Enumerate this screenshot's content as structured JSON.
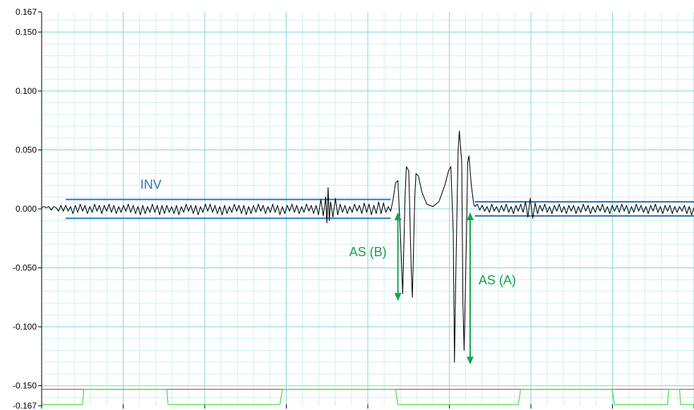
{
  "chart_data": {
    "type": "line",
    "y_ticks": [
      {
        "value": 0.167,
        "label": "0.167"
      },
      {
        "value": 0.15,
        "label": "0.150"
      },
      {
        "value": 0.1,
        "label": "0.100"
      },
      {
        "value": 0.05,
        "label": "0.050"
      },
      {
        "value": 0.0,
        "label": "0.000"
      },
      {
        "value": -0.05,
        "label": "-0.050"
      },
      {
        "value": -0.1,
        "label": "-0.100"
      },
      {
        "value": -0.15,
        "label": "-0.150"
      },
      {
        "value": -0.167,
        "label": "-0.167"
      }
    ],
    "ylim": [
      -0.167,
      0.167
    ],
    "grid": true,
    "signal": {
      "color": "#000000",
      "points": [
        [
          0.0,
          0.001
        ],
        [
          0.02,
          0.002
        ],
        [
          0.04,
          0.001
        ],
        [
          0.06,
          0.002
        ],
        [
          0.08,
          -0.001
        ],
        [
          0.1,
          0.002
        ],
        [
          0.12,
          0.001
        ],
        [
          0.14,
          -0.002
        ],
        [
          0.16,
          0.003
        ],
        [
          0.18,
          -0.002
        ],
        [
          0.2,
          0.003
        ],
        [
          0.22,
          -0.002
        ],
        [
          0.24,
          0.002
        ],
        [
          0.26,
          -0.004
        ],
        [
          0.28,
          0.003
        ],
        [
          0.3,
          -0.003
        ],
        [
          0.32,
          0.004
        ],
        [
          0.34,
          -0.002
        ],
        [
          0.36,
          0.003
        ],
        [
          0.38,
          -0.004
        ],
        [
          0.4,
          0.002
        ],
        [
          0.42,
          -0.003
        ],
        [
          0.44,
          0.004
        ],
        [
          0.46,
          -0.002
        ],
        [
          0.48,
          0.003
        ],
        [
          0.5,
          -0.004
        ],
        [
          0.52,
          0.003
        ],
        [
          0.54,
          -0.002
        ],
        [
          0.56,
          0.004
        ],
        [
          0.58,
          -0.003
        ],
        [
          0.6,
          0.003
        ],
        [
          0.62,
          -0.004
        ],
        [
          0.64,
          0.002
        ],
        [
          0.66,
          -0.003
        ],
        [
          0.68,
          0.003
        ],
        [
          0.7,
          -0.002
        ],
        [
          0.72,
          0.004
        ],
        [
          0.74,
          -0.003
        ],
        [
          0.76,
          0.003
        ],
        [
          0.78,
          -0.004
        ],
        [
          0.8,
          0.002
        ],
        [
          0.82,
          -0.005
        ],
        [
          0.84,
          0.003
        ],
        [
          0.86,
          -0.004
        ],
        [
          0.88,
          0.002
        ],
        [
          0.9,
          -0.003
        ],
        [
          0.92,
          0.004
        ],
        [
          0.94,
          -0.003
        ],
        [
          0.96,
          0.003
        ],
        [
          0.98,
          -0.005
        ],
        [
          1.0,
          0.003
        ],
        [
          1.02,
          -0.004
        ],
        [
          1.04,
          0.003
        ],
        [
          1.06,
          -0.003
        ],
        [
          1.08,
          0.002
        ],
        [
          1.1,
          -0.004
        ],
        [
          1.12,
          0.003
        ],
        [
          1.14,
          -0.005
        ],
        [
          1.16,
          0.002
        ],
        [
          1.18,
          -0.003
        ],
        [
          1.2,
          0.004
        ],
        [
          1.22,
          -0.002
        ],
        [
          1.24,
          0.003
        ],
        [
          1.26,
          -0.004
        ],
        [
          1.28,
          0.003
        ],
        [
          1.3,
          -0.005
        ],
        [
          1.32,
          0.002
        ],
        [
          1.34,
          -0.003
        ],
        [
          1.36,
          0.004
        ],
        [
          1.38,
          -0.002
        ],
        [
          1.4,
          0.004
        ],
        [
          1.42,
          -0.003
        ],
        [
          1.44,
          0.003
        ],
        [
          1.46,
          -0.004
        ],
        [
          1.48,
          0.002
        ],
        [
          1.5,
          -0.005
        ],
        [
          1.52,
          0.003
        ],
        [
          1.54,
          -0.004
        ],
        [
          1.56,
          0.002
        ],
        [
          1.58,
          -0.003
        ],
        [
          1.6,
          0.004
        ],
        [
          1.62,
          -0.002
        ],
        [
          1.64,
          0.003
        ],
        [
          1.66,
          -0.004
        ],
        [
          1.68,
          0.003
        ],
        [
          1.7,
          -0.005
        ],
        [
          1.72,
          0.002
        ],
        [
          1.74,
          -0.004
        ],
        [
          1.76,
          0.003
        ],
        [
          1.78,
          -0.003
        ],
        [
          1.8,
          0.004
        ],
        [
          1.82,
          -0.002
        ],
        [
          1.84,
          0.003
        ],
        [
          1.86,
          -0.004
        ],
        [
          1.88,
          0.002
        ],
        [
          1.9,
          -0.003
        ],
        [
          1.92,
          0.004
        ],
        [
          1.94,
          -0.003
        ],
        [
          1.96,
          0.003
        ],
        [
          1.98,
          -0.005
        ],
        [
          2.0,
          0.002
        ],
        [
          2.02,
          -0.004
        ],
        [
          2.04,
          0.003
        ],
        [
          2.06,
          -0.002
        ],
        [
          2.08,
          0.004
        ],
        [
          2.1,
          -0.003
        ],
        [
          2.12,
          0.003
        ],
        [
          2.14,
          -0.004
        ],
        [
          2.16,
          0.002
        ],
        [
          2.18,
          -0.003
        ],
        [
          2.2,
          0.004
        ],
        [
          2.22,
          -0.002
        ],
        [
          2.24,
          0.003
        ],
        [
          2.26,
          -0.004
        ],
        [
          2.28,
          0.003
        ],
        [
          2.3,
          -0.005
        ],
        [
          2.32,
          0.008
        ],
        [
          2.34,
          -0.006
        ],
        [
          2.36,
          0.01
        ],
        [
          2.37,
          -0.012
        ],
        [
          2.38,
          0.018
        ],
        [
          2.39,
          -0.01
        ],
        [
          2.4,
          0.006
        ],
        [
          2.42,
          -0.007
        ],
        [
          2.44,
          0.009
        ],
        [
          2.46,
          -0.005
        ],
        [
          2.48,
          0.004
        ],
        [
          2.5,
          -0.003
        ],
        [
          2.52,
          0.003
        ],
        [
          2.54,
          -0.004
        ],
        [
          2.56,
          0.002
        ],
        [
          2.58,
          -0.003
        ],
        [
          2.6,
          0.004
        ],
        [
          2.62,
          -0.002
        ],
        [
          2.64,
          0.003
        ],
        [
          2.66,
          -0.004
        ],
        [
          2.68,
          0.005
        ],
        [
          2.7,
          -0.003
        ],
        [
          2.72,
          0.004
        ],
        [
          2.74,
          -0.005
        ],
        [
          2.76,
          0.003
        ],
        [
          2.78,
          -0.004
        ],
        [
          2.8,
          0.006
        ],
        [
          2.82,
          -0.004
        ],
        [
          2.84,
          0.005
        ],
        [
          2.86,
          -0.003
        ],
        [
          2.88,
          0.002
        ],
        [
          2.9,
          -0.002
        ],
        [
          2.92,
          0.008
        ],
        [
          2.94,
          0.022
        ],
        [
          2.96,
          0.024
        ],
        [
          2.98,
          -0.02
        ],
        [
          3.0,
          -0.072
        ],
        [
          3.02,
          0.012
        ],
        [
          3.03,
          0.036
        ],
        [
          3.05,
          0.032
        ],
        [
          3.07,
          -0.05
        ],
        [
          3.08,
          -0.075
        ],
        [
          3.1,
          0.01
        ],
        [
          3.11,
          0.03
        ],
        [
          3.13,
          0.028
        ],
        [
          3.16,
          0.014
        ],
        [
          3.2,
          0.004
        ],
        [
          3.25,
          0.002
        ],
        [
          3.3,
          0.006
        ],
        [
          3.35,
          0.02
        ],
        [
          3.38,
          0.032
        ],
        [
          3.4,
          0.036
        ],
        [
          3.42,
          -0.02
        ],
        [
          3.43,
          -0.13
        ],
        [
          3.44,
          -0.06
        ],
        [
          3.46,
          0.05
        ],
        [
          3.47,
          0.066
        ],
        [
          3.49,
          0.04
        ],
        [
          3.5,
          -0.08
        ],
        [
          3.51,
          -0.12
        ],
        [
          3.53,
          -0.02
        ],
        [
          3.54,
          0.04
        ],
        [
          3.55,
          0.045
        ],
        [
          3.57,
          0.02
        ],
        [
          3.59,
          0.004
        ],
        [
          3.6,
          0.002
        ],
        [
          3.62,
          0.004
        ],
        [
          3.64,
          -0.001
        ],
        [
          3.66,
          0.003
        ],
        [
          3.68,
          -0.002
        ],
        [
          3.7,
          0.002
        ],
        [
          3.72,
          -0.003
        ],
        [
          3.74,
          0.004
        ],
        [
          3.76,
          -0.002
        ],
        [
          3.78,
          0.002
        ],
        [
          3.8,
          -0.003
        ],
        [
          3.82,
          0.003
        ],
        [
          3.84,
          -0.002
        ],
        [
          3.86,
          0.004
        ],
        [
          3.88,
          -0.003
        ],
        [
          3.9,
          0.002
        ],
        [
          3.92,
          -0.004
        ],
        [
          3.94,
          0.003
        ],
        [
          3.96,
          -0.002
        ],
        [
          3.98,
          0.004
        ],
        [
          4.0,
          -0.003
        ],
        [
          4.02,
          0.006
        ],
        [
          4.04,
          -0.007
        ],
        [
          4.06,
          0.009
        ],
        [
          4.08,
          -0.008
        ],
        [
          4.1,
          0.005
        ],
        [
          4.12,
          -0.004
        ],
        [
          4.14,
          0.003
        ],
        [
          4.16,
          -0.002
        ],
        [
          4.18,
          0.004
        ],
        [
          4.2,
          -0.003
        ],
        [
          4.22,
          0.002
        ],
        [
          4.24,
          -0.004
        ],
        [
          4.26,
          0.003
        ],
        [
          4.28,
          -0.002
        ],
        [
          4.3,
          0.004
        ],
        [
          4.32,
          -0.003
        ],
        [
          4.34,
          0.002
        ],
        [
          4.36,
          -0.004
        ],
        [
          4.38,
          0.003
        ],
        [
          4.4,
          -0.002
        ],
        [
          4.42,
          0.003
        ],
        [
          4.44,
          -0.004
        ],
        [
          4.46,
          0.002
        ],
        [
          4.48,
          -0.003
        ],
        [
          4.5,
          0.004
        ],
        [
          4.52,
          -0.002
        ],
        [
          4.54,
          0.003
        ],
        [
          4.56,
          -0.004
        ],
        [
          4.58,
          0.002
        ],
        [
          4.6,
          -0.003
        ],
        [
          4.62,
          0.003
        ],
        [
          4.64,
          -0.002
        ],
        [
          4.66,
          0.004
        ],
        [
          4.68,
          -0.003
        ],
        [
          4.7,
          0.002
        ],
        [
          4.72,
          -0.004
        ],
        [
          4.74,
          0.003
        ],
        [
          4.76,
          -0.002
        ],
        [
          4.78,
          0.003
        ],
        [
          4.8,
          -0.003
        ],
        [
          4.82,
          0.004
        ],
        [
          4.84,
          -0.002
        ],
        [
          4.86,
          0.003
        ],
        [
          4.88,
          -0.004
        ],
        [
          4.9,
          0.002
        ],
        [
          4.92,
          -0.003
        ],
        [
          4.94,
          0.004
        ],
        [
          4.96,
          -0.002
        ],
        [
          4.98,
          0.003
        ],
        [
          5.0,
          -0.003
        ],
        [
          5.02,
          0.002
        ],
        [
          5.04,
          -0.004
        ],
        [
          5.06,
          0.003
        ],
        [
          5.08,
          -0.002
        ],
        [
          5.1,
          0.004
        ],
        [
          5.12,
          -0.003
        ],
        [
          5.14,
          0.002
        ],
        [
          5.16,
          -0.004
        ],
        [
          5.18,
          0.003
        ],
        [
          5.2,
          -0.002
        ],
        [
          5.22,
          0.003
        ],
        [
          5.24,
          -0.004
        ],
        [
          5.26,
          0.002
        ],
        [
          5.28,
          -0.003
        ],
        [
          5.3,
          0.002
        ],
        [
          5.32,
          -0.002
        ],
        [
          5.34,
          0.003
        ],
        [
          5.36,
          -0.004
        ],
        [
          5.38,
          0.002
        ],
        [
          5.4,
          -0.005
        ],
        [
          5.42,
          0.001
        ]
      ]
    },
    "red_level": {
      "value": -0.153,
      "color": "#d9534f"
    },
    "green_gate": {
      "color": "#44dd44",
      "high": -0.153,
      "low": -0.166,
      "segments": [
        [
          0.0,
          0.34,
          "low"
        ],
        [
          0.34,
          0.35,
          "rise"
        ],
        [
          0.35,
          1.04,
          "high"
        ],
        [
          1.04,
          1.05,
          "fall"
        ],
        [
          1.05,
          1.98,
          "low"
        ],
        [
          1.98,
          2.0,
          "rise"
        ],
        [
          2.0,
          2.94,
          "high"
        ],
        [
          2.94,
          2.96,
          "fall"
        ],
        [
          2.96,
          3.96,
          "low"
        ],
        [
          3.96,
          3.98,
          "rise"
        ],
        [
          3.98,
          4.74,
          "high"
        ],
        [
          4.74,
          4.76,
          "fall"
        ],
        [
          4.76,
          5.2,
          "low"
        ],
        [
          5.2,
          5.21,
          "rise"
        ],
        [
          5.21,
          5.3,
          "high"
        ],
        [
          5.3,
          5.31,
          "fall"
        ],
        [
          5.31,
          5.42,
          "low"
        ]
      ]
    },
    "annotations": {
      "inv": {
        "label": "INV",
        "color": "#2f74b5",
        "lines": [
          {
            "x1": 0.2,
            "x2": 2.9,
            "y": 0.008
          },
          {
            "x1": 0.2,
            "x2": 2.9,
            "y": -0.008
          },
          {
            "x1": 3.6,
            "x2": 5.42,
            "y": 0.006
          },
          {
            "x1": 3.6,
            "x2": 5.42,
            "y": -0.006
          }
        ]
      },
      "as_b": {
        "label": "AS (B)",
        "color": "#16a34a",
        "x": 2.96,
        "y_top": -0.003,
        "y_bottom": -0.078
      },
      "as_a": {
        "label": "AS (A)",
        "color": "#16a34a",
        "x": 3.56,
        "y_top": -0.003,
        "y_bottom": -0.132
      }
    }
  }
}
